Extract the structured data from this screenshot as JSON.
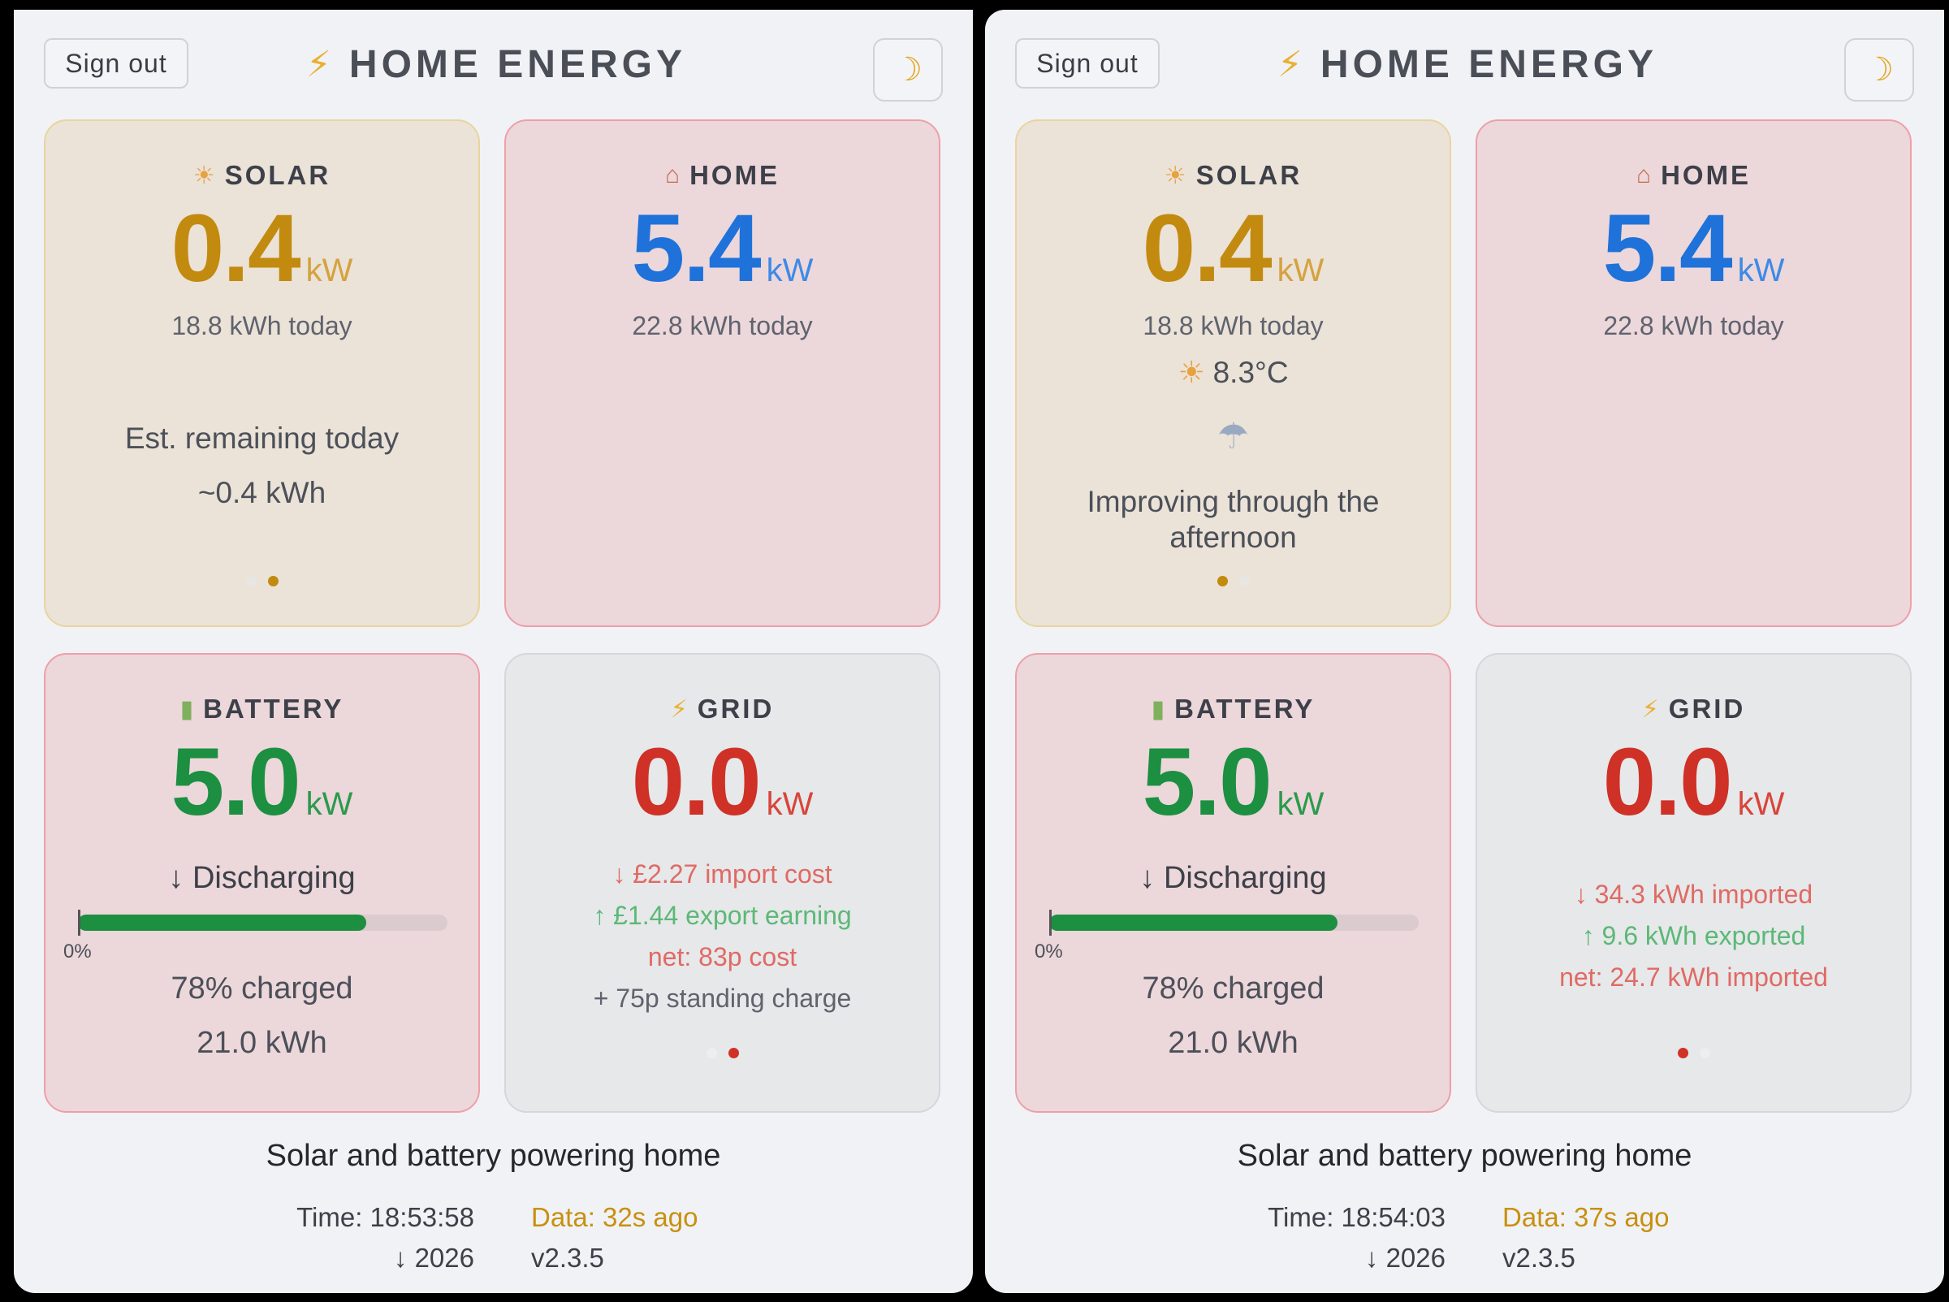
{
  "panels": [
    {
      "header": {
        "signout": "Sign out",
        "brand_icon": "⚡",
        "title": "HOME ENERGY",
        "theme_icon": "☽"
      },
      "solar": {
        "icon": "☀",
        "title": "SOLAR",
        "value": "0.4",
        "unit": "kW",
        "today": "18.8 kWh today",
        "est_label": "Est. remaining today",
        "est_value": "~0.4 kWh",
        "page": 2,
        "pages": 2
      },
      "home": {
        "icon": "⌂",
        "title": "HOME",
        "value": "5.4",
        "unit": "kW",
        "today": "22.8 kWh today"
      },
      "battery": {
        "icon": "▮",
        "title": "BATTERY",
        "value": "5.0",
        "unit": "kW",
        "status": "↓ Discharging",
        "charge_fraction": 0.78,
        "bar_min_label": "0%",
        "charged": "78% charged",
        "energy": "21.0 kWh"
      },
      "grid": {
        "icon": "⚡",
        "title": "GRID",
        "value": "0.0",
        "unit": "kW",
        "line1": "↓ £2.27 import cost",
        "line2": "↑ £1.44 export earning",
        "line3": "net: 83p cost",
        "line4": "+ 75p standing charge",
        "page": 2,
        "pages": 2
      },
      "footer": {
        "status": "Solar and battery powering home",
        "time": "Time: 18:53:58",
        "data_age": "Data: 32s ago",
        "year": "↓ 2026",
        "version": "v2.3.5"
      }
    },
    {
      "header": {
        "signout": "Sign out",
        "brand_icon": "⚡",
        "title": "HOME ENERGY",
        "theme_icon": "☽"
      },
      "solar": {
        "icon": "☀",
        "title": "SOLAR",
        "value": "0.4",
        "unit": "kW",
        "today": "18.8 kWh today",
        "temp_icon": "☀",
        "temp": "8.3°C",
        "weather_icon": "☂",
        "forecast": "Improving through the afternoon",
        "page": 1,
        "pages": 2
      },
      "home": {
        "icon": "⌂",
        "title": "HOME",
        "value": "5.4",
        "unit": "kW",
        "today": "22.8 kWh today"
      },
      "battery": {
        "icon": "▮",
        "title": "BATTERY",
        "value": "5.0",
        "unit": "kW",
        "status": "↓ Discharging",
        "charge_fraction": 0.78,
        "bar_min_label": "0%",
        "charged": "78% charged",
        "energy": "21.0 kWh"
      },
      "grid": {
        "icon": "⚡",
        "title": "GRID",
        "value": "0.0",
        "unit": "kW",
        "line1": "↓ 34.3 kWh imported",
        "line2": "↑ 9.6 kWh exported",
        "line3": "net: 24.7 kWh imported",
        "page": 1,
        "pages": 2
      },
      "footer": {
        "status": "Solar and battery powering home",
        "time": "Time: 18:54:03",
        "data_age": "Data: 37s ago",
        "year": "↓ 2026",
        "version": "v2.3.5"
      }
    }
  ],
  "colors": {
    "solar": "#c28a0e",
    "home": "#1e72d9",
    "battery": "#1c8f41",
    "grid": "#cf3126",
    "data_age": "#c8900e"
  }
}
